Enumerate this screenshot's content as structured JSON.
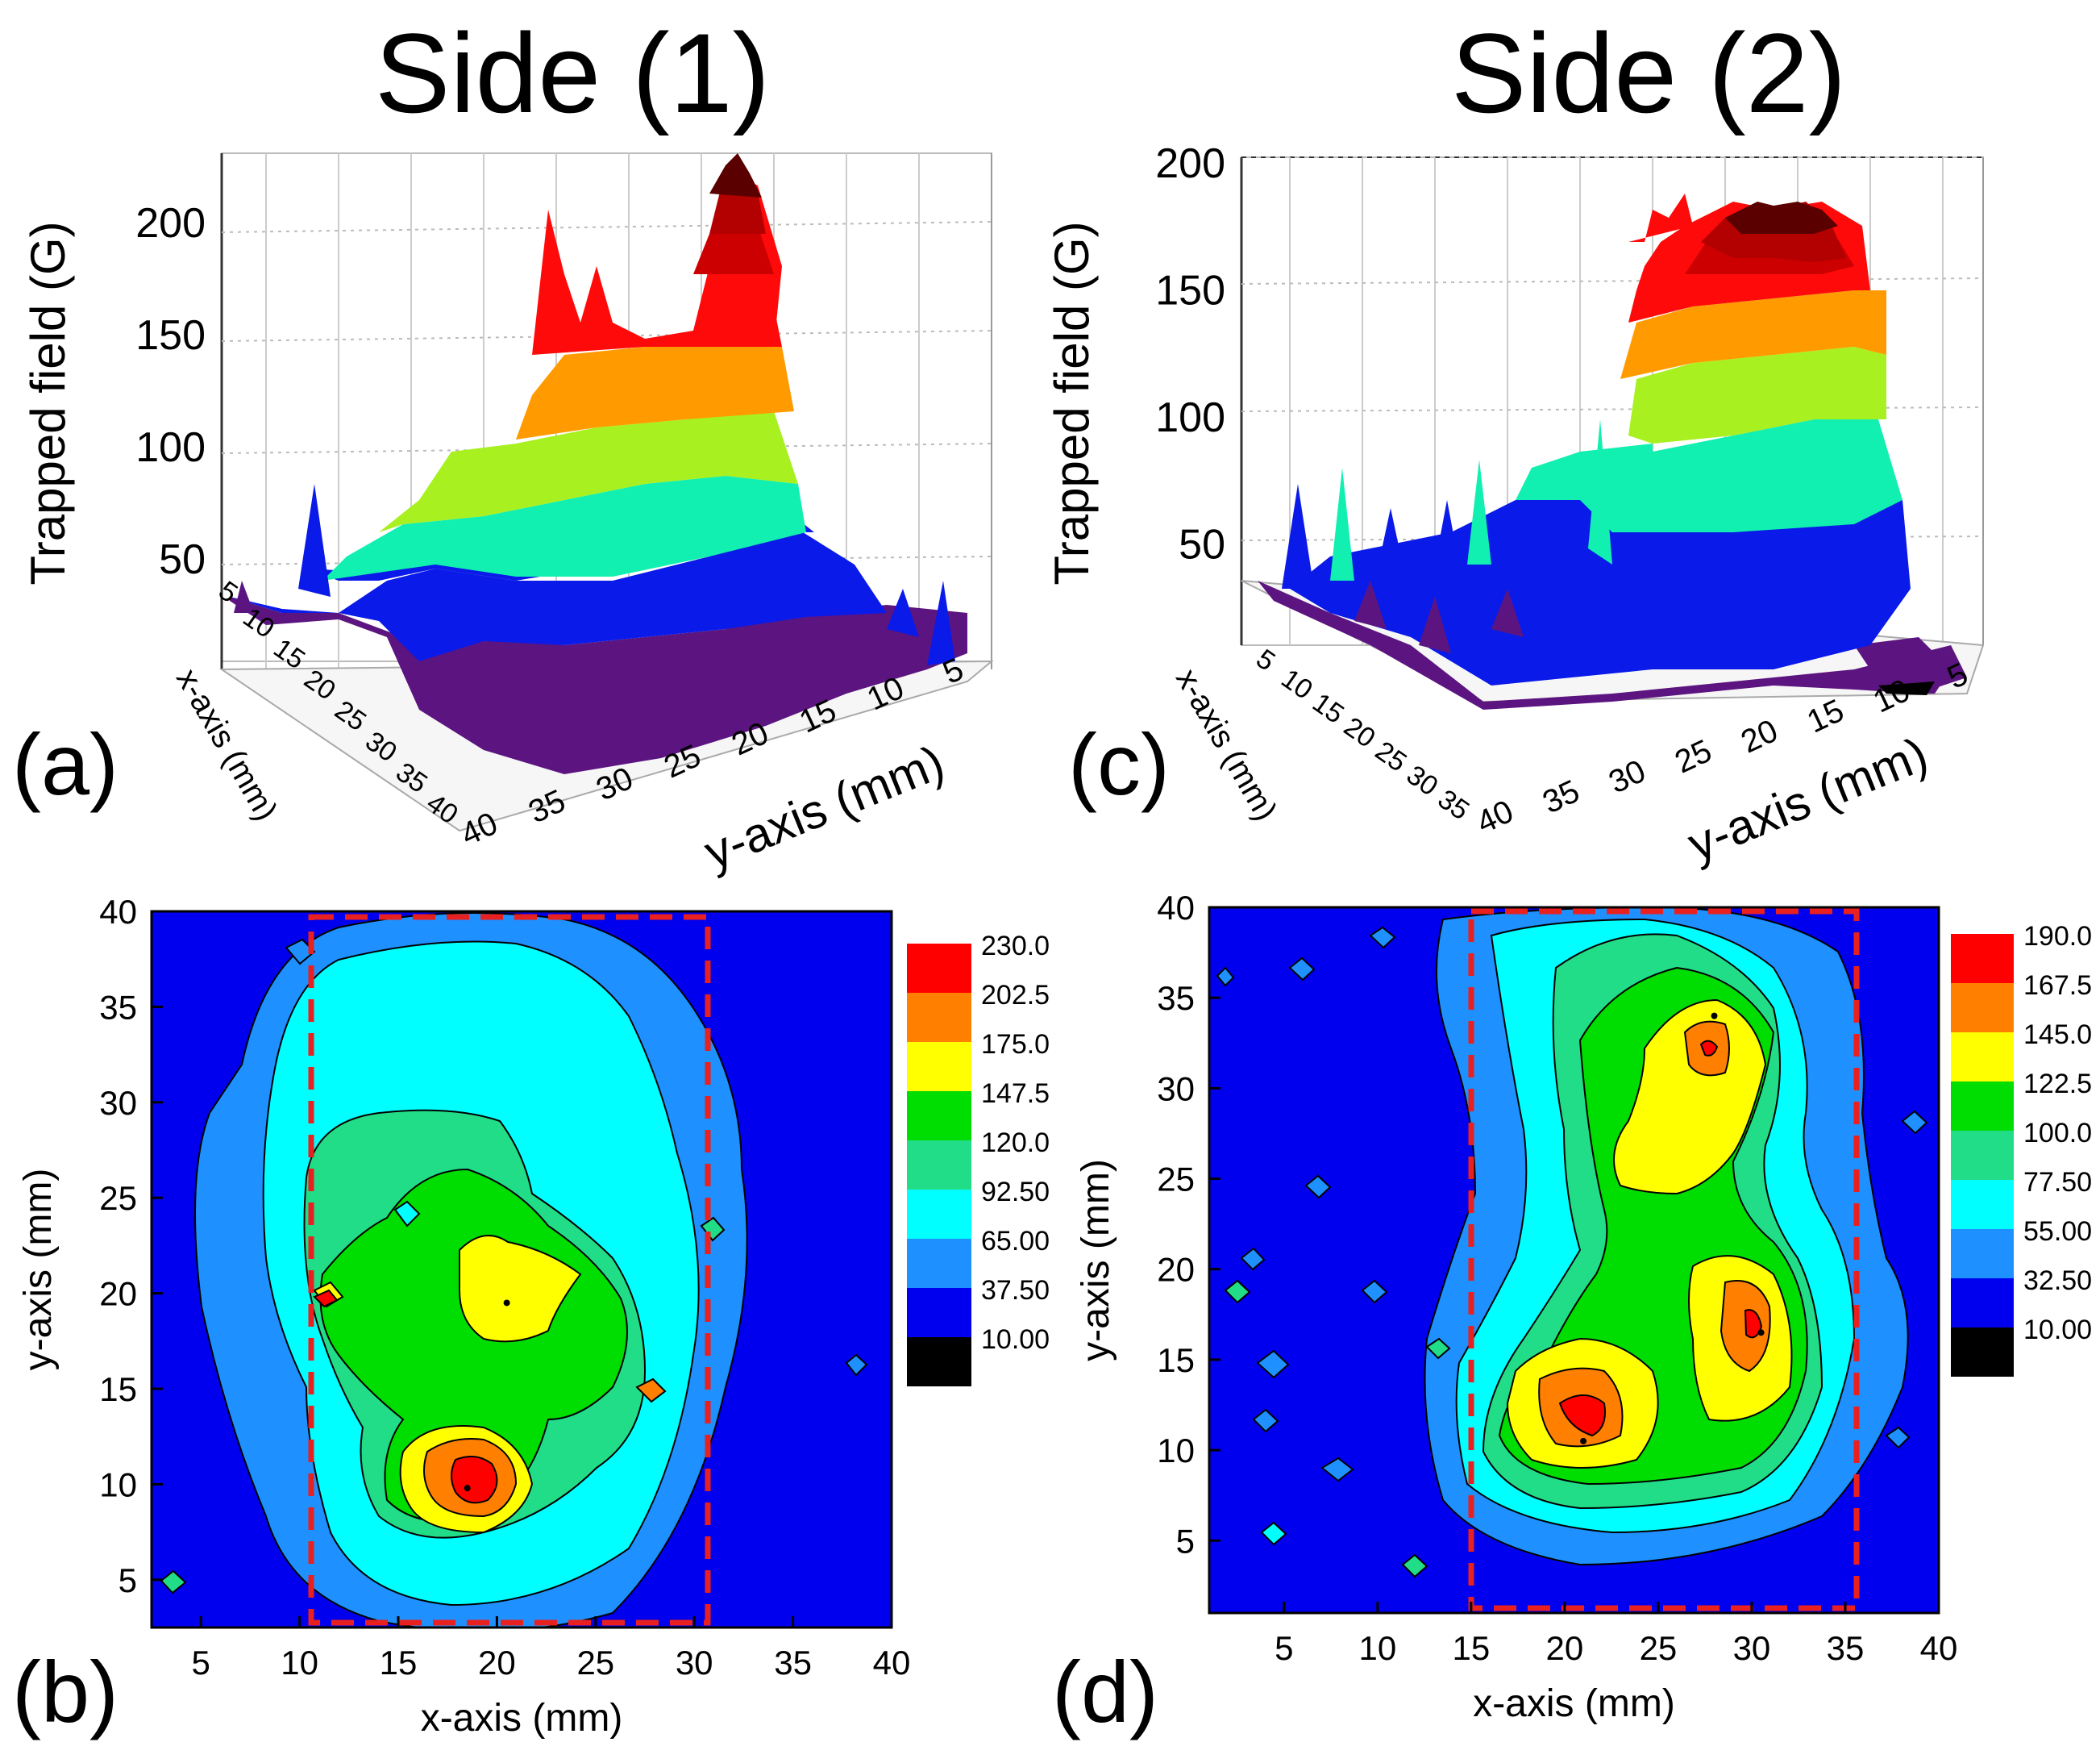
{
  "titles": {
    "side1": "Side (1)",
    "side2": "Side (2)"
  },
  "panel_labels": {
    "a": "(a)",
    "b": "(b)",
    "c": "(c)",
    "d": "(d)"
  },
  "chart_data": [
    {
      "panel": "(a)",
      "type": "surface3d",
      "title": "Side (1)",
      "zlabel": "Trapped field (G)",
      "xlabel": "x-axis (mm)",
      "ylabel": "y-axis (mm)",
      "zticks": [
        50,
        100,
        150,
        200
      ],
      "xticks": [
        5,
        10,
        15,
        20,
        25,
        30,
        35,
        40
      ],
      "yticks": [
        5,
        10,
        15,
        20,
        25,
        30,
        35,
        40
      ],
      "z_max": 230
    },
    {
      "panel": "(b)",
      "type": "contour",
      "xlabel": "x-axis (mm)",
      "ylabel": "y-axis (mm)",
      "xlim": [
        2.5,
        40
      ],
      "ylim": [
        2.5,
        40
      ],
      "xticks": [
        5,
        10,
        15,
        20,
        25,
        30,
        35,
        40
      ],
      "yticks": [
        5,
        10,
        15,
        20,
        25,
        30,
        35,
        40
      ],
      "legend_levels": [
        "230.0",
        "202.5",
        "175.0",
        "147.5",
        "120.0",
        "92.50",
        "65.00",
        "37.50",
        "10.00"
      ],
      "legend_colors": [
        "#ff0000",
        "#ff8000",
        "#ffff00",
        "#00dd00",
        "#22dd88",
        "#00ffff",
        "#1e90ff",
        "#0000ee",
        "#000000"
      ],
      "peaks": [
        {
          "x": 18.5,
          "y": 9.8,
          "value": 230
        },
        {
          "x": 20.5,
          "y": 19.5,
          "value": 150
        }
      ],
      "dashed_box": {
        "x": [
          10.5,
          30.5
        ],
        "y": [
          2.5,
          40
        ]
      }
    },
    {
      "panel": "(c)",
      "type": "surface3d",
      "title": "Side (2)",
      "zlabel": "Trapped field (G)",
      "xlabel": "x-axis (mm)",
      "ylabel": "y-axis (mm)",
      "zticks": [
        50,
        100,
        150,
        200
      ],
      "xticks": [
        5,
        10,
        15,
        20,
        25,
        30,
        35
      ],
      "yticks": [
        5,
        10,
        15,
        20,
        25,
        30,
        35,
        40
      ],
      "z_max": 190
    },
    {
      "panel": "(d)",
      "type": "contour",
      "xlabel": "x-axis (mm)",
      "ylabel": "y-axis (mm)",
      "xlim": [
        1,
        40
      ],
      "ylim": [
        1,
        40
      ],
      "xticks": [
        5,
        10,
        15,
        20,
        25,
        30,
        35,
        40
      ],
      "yticks": [
        5,
        10,
        15,
        20,
        25,
        30,
        35,
        40
      ],
      "legend_levels": [
        "190.0",
        "167.5",
        "145.0",
        "122.5",
        "100.0",
        "77.50",
        "55.00",
        "32.50",
        "10.00"
      ],
      "legend_colors": [
        "#ff0000",
        "#ff8000",
        "#ffff00",
        "#00dd00",
        "#22dd88",
        "#00ffff",
        "#1e90ff",
        "#0000ee",
        "#000000"
      ],
      "peaks": [
        {
          "x": 21,
          "y": 10.5,
          "value": 190
        },
        {
          "x": 28,
          "y": 34,
          "value": 175
        },
        {
          "x": 30.5,
          "y": 16.5,
          "value": 175
        }
      ],
      "dashed_box": {
        "x": [
          15,
          35.5
        ],
        "y": [
          1.5,
          40
        ]
      }
    }
  ]
}
